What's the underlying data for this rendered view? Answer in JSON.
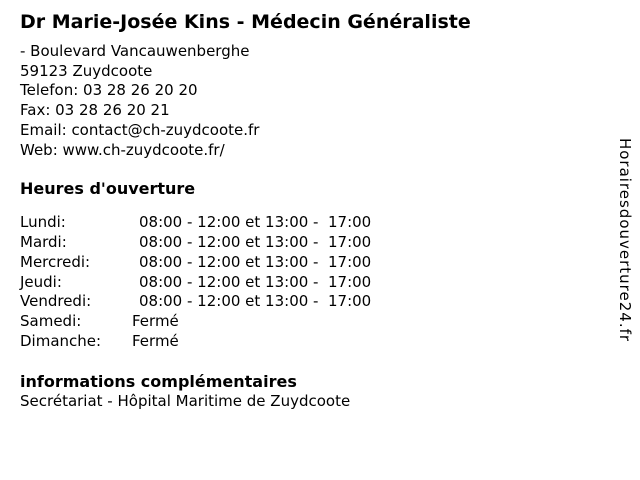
{
  "page": {
    "background_color": "#ffffff",
    "text_color": "#000000"
  },
  "header": {
    "title": "Dr Marie-Josée Kins - Médecin Généraliste"
  },
  "contact": {
    "lines": [
      "- Boulevard Vancauwenberghe",
      "59123 Zuydcoote",
      "Telefon: 03 28 26 20 20",
      "Fax: 03 28 26 20 21",
      "Email: contact@ch-zuydcoote.fr",
      "Web: www.ch-zuydcoote.fr/"
    ]
  },
  "hours": {
    "heading": "Heures d'ouverture",
    "rows": [
      {
        "day": "Lundi:",
        "value": "08:00 - 12:00 et 13:00 -  17:00",
        "closed": false
      },
      {
        "day": "Mardi:",
        "value": "08:00 - 12:00 et 13:00 -  17:00",
        "closed": false
      },
      {
        "day": "Mercredi:",
        "value": "08:00 - 12:00 et 13:00 -  17:00",
        "closed": false
      },
      {
        "day": "Jeudi:",
        "value": "08:00 - 12:00 et 13:00 -  17:00",
        "closed": false
      },
      {
        "day": "Vendredi:",
        "value": "08:00 - 12:00 et 13:00 -  17:00",
        "closed": false
      },
      {
        "day": "Samedi:",
        "value": "Fermé",
        "closed": true
      },
      {
        "day": "Dimanche:",
        "value": "Fermé",
        "closed": true
      }
    ]
  },
  "extra_info": {
    "heading": "informations complémentaires",
    "text": "Secrétariat - Hôpital Maritime de Zuydcoote"
  },
  "watermark": {
    "text": "Horairesdouverture24.fr"
  }
}
